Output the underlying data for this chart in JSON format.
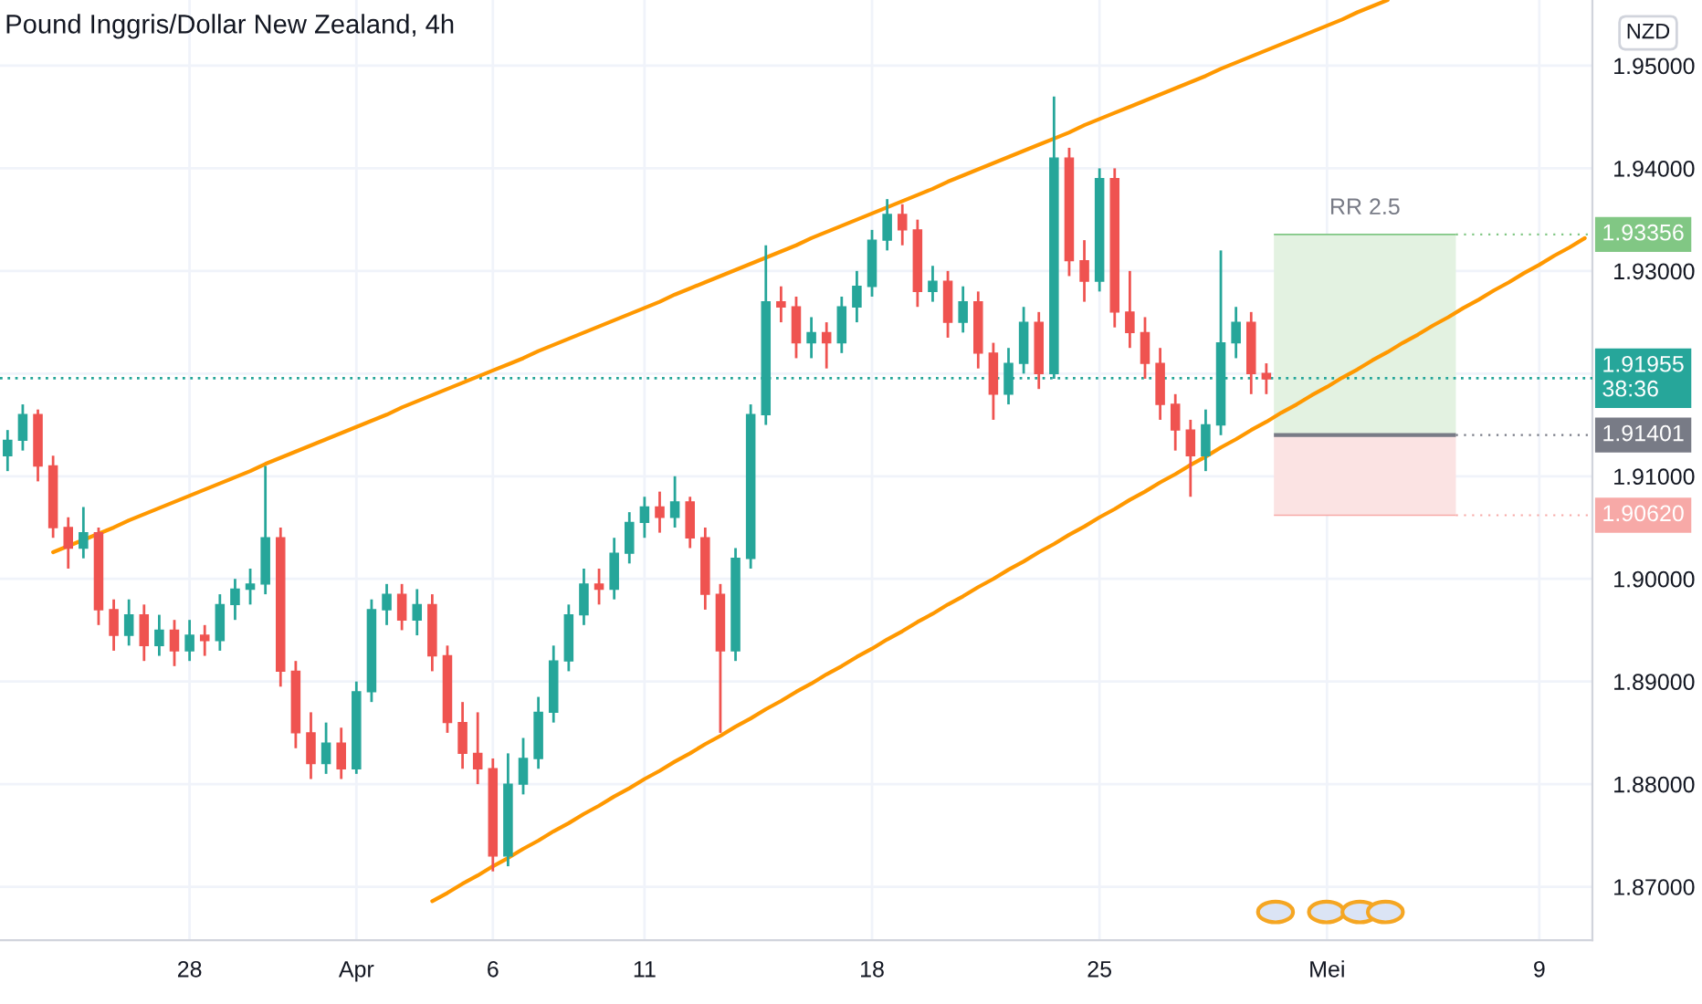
{
  "chart_data": {
    "type": "candlestick",
    "title": "Pound Inggris/Dollar New Zealand, 4h",
    "ylabel": "NZD",
    "categories": [
      null,
      null,
      null,
      null,
      null,
      null,
      null,
      null,
      null,
      null,
      null,
      null,
      "28",
      null,
      null,
      null,
      null,
      null,
      null,
      null,
      null,
      null,
      null,
      "Apr",
      null,
      null,
      null,
      null,
      null,
      null,
      null,
      null,
      "6",
      null,
      null,
      null,
      null,
      null,
      null,
      null,
      null,
      null,
      "11",
      null,
      null,
      null,
      null,
      null,
      null,
      null,
      null,
      null,
      null,
      null,
      null,
      null,
      null,
      "18",
      null,
      null,
      null,
      null,
      null,
      null,
      null,
      null,
      null,
      null,
      null,
      null,
      null,
      null,
      "25",
      null,
      null,
      null,
      null,
      null,
      null,
      null,
      null,
      null,
      null,
      null,
      null,
      null,
      null,
      "Mei",
      null,
      null,
      null,
      null,
      null,
      null,
      null,
      null,
      null,
      null,
      null,
      null,
      null,
      "9",
      null,
      null,
      null
    ],
    "ohlc": [
      [
        1.912,
        1.9145,
        1.9105,
        1.9135
      ],
      [
        1.9135,
        1.917,
        1.9125,
        1.916
      ],
      [
        1.916,
        1.9165,
        1.9095,
        1.911
      ],
      [
        1.911,
        1.912,
        1.904,
        1.905
      ],
      [
        1.905,
        1.906,
        1.901,
        1.903
      ],
      [
        1.903,
        1.907,
        1.902,
        1.9045
      ],
      [
        1.9045,
        1.905,
        1.8955,
        1.897
      ],
      [
        1.897,
        1.898,
        1.893,
        1.8945
      ],
      [
        1.8945,
        1.898,
        1.8935,
        1.8965
      ],
      [
        1.8965,
        1.8975,
        1.892,
        1.8935
      ],
      [
        1.8935,
        1.8965,
        1.8925,
        1.895
      ],
      [
        1.895,
        1.896,
        1.8915,
        1.893
      ],
      [
        1.893,
        1.896,
        1.892,
        1.8945
      ],
      [
        1.8945,
        1.8955,
        1.8925,
        1.894
      ],
      [
        1.894,
        1.8985,
        1.893,
        1.8975
      ],
      [
        1.8975,
        1.9,
        1.896,
        1.899
      ],
      [
        1.899,
        1.901,
        1.8975,
        1.8995
      ],
      [
        1.8995,
        1.911,
        1.8985,
        1.904
      ],
      [
        1.904,
        1.905,
        1.8895,
        1.891
      ],
      [
        1.891,
        1.892,
        1.8835,
        1.885
      ],
      [
        1.885,
        1.887,
        1.8805,
        1.882
      ],
      [
        1.882,
        1.886,
        1.881,
        1.884
      ],
      [
        1.884,
        1.8855,
        1.8805,
        1.8815
      ],
      [
        1.8815,
        1.89,
        1.881,
        1.889
      ],
      [
        1.889,
        1.898,
        1.888,
        1.897
      ],
      [
        1.897,
        1.8995,
        1.8955,
        1.8985
      ],
      [
        1.8985,
        1.8995,
        1.895,
        1.896
      ],
      [
        1.896,
        1.899,
        1.8945,
        1.8975
      ],
      [
        1.8975,
        1.8985,
        1.891,
        1.8925
      ],
      [
        1.8925,
        1.8935,
        1.885,
        1.886
      ],
      [
        1.886,
        1.888,
        1.8815,
        1.883
      ],
      [
        1.883,
        1.887,
        1.88,
        1.8815
      ],
      [
        1.8815,
        1.8825,
        1.8715,
        1.873
      ],
      [
        1.873,
        1.883,
        1.872,
        1.88
      ],
      [
        1.88,
        1.8845,
        1.879,
        1.8825
      ],
      [
        1.8825,
        1.8885,
        1.8815,
        1.887
      ],
      [
        1.887,
        1.8935,
        1.886,
        1.892
      ],
      [
        1.892,
        1.8975,
        1.891,
        1.8965
      ],
      [
        1.8965,
        1.901,
        1.8955,
        1.8995
      ],
      [
        1.8995,
        1.901,
        1.8975,
        1.899
      ],
      [
        1.899,
        1.904,
        1.898,
        1.9025
      ],
      [
        1.9025,
        1.9065,
        1.9015,
        1.9055
      ],
      [
        1.9055,
        1.908,
        1.904,
        1.907
      ],
      [
        1.907,
        1.9085,
        1.9045,
        1.906
      ],
      [
        1.906,
        1.91,
        1.905,
        1.9075
      ],
      [
        1.9075,
        1.908,
        1.903,
        1.904
      ],
      [
        1.904,
        1.905,
        1.897,
        1.8985
      ],
      [
        1.8985,
        1.8995,
        1.885,
        1.893
      ],
      [
        1.893,
        1.903,
        1.892,
        1.902
      ],
      [
        1.902,
        1.917,
        1.901,
        1.916
      ],
      [
        1.916,
        1.9325,
        1.915,
        1.927
      ],
      [
        1.927,
        1.9285,
        1.925,
        1.9265
      ],
      [
        1.9265,
        1.9275,
        1.9215,
        1.923
      ],
      [
        1.923,
        1.9255,
        1.9215,
        1.924
      ],
      [
        1.924,
        1.925,
        1.9205,
        1.923
      ],
      [
        1.923,
        1.9275,
        1.922,
        1.9265
      ],
      [
        1.9265,
        1.93,
        1.925,
        1.9285
      ],
      [
        1.9285,
        1.934,
        1.9275,
        1.933
      ],
      [
        1.933,
        1.937,
        1.932,
        1.9355
      ],
      [
        1.9355,
        1.9365,
        1.9325,
        1.934
      ],
      [
        1.934,
        1.935,
        1.9265,
        1.928
      ],
      [
        1.928,
        1.9305,
        1.927,
        1.929
      ],
      [
        1.929,
        1.93,
        1.9235,
        1.925
      ],
      [
        1.925,
        1.9285,
        1.924,
        1.927
      ],
      [
        1.927,
        1.928,
        1.9205,
        1.922
      ],
      [
        1.922,
        1.923,
        1.9155,
        1.918
      ],
      [
        1.918,
        1.9225,
        1.917,
        1.921
      ],
      [
        1.921,
        1.9265,
        1.92,
        1.925
      ],
      [
        1.925,
        1.926,
        1.9185,
        1.92
      ],
      [
        1.92,
        1.947,
        1.9195,
        1.941
      ],
      [
        1.941,
        1.942,
        1.9295,
        1.931
      ],
      [
        1.931,
        1.933,
        1.927,
        1.929
      ],
      [
        1.929,
        1.94,
        1.928,
        1.939
      ],
      [
        1.939,
        1.94,
        1.9245,
        1.926
      ],
      [
        1.926,
        1.93,
        1.9225,
        1.924
      ],
      [
        1.924,
        1.9255,
        1.9195,
        1.921
      ],
      [
        1.921,
        1.9225,
        1.9155,
        1.917
      ],
      [
        1.917,
        1.918,
        1.9125,
        1.9145
      ],
      [
        1.9145,
        1.9155,
        1.908,
        1.912
      ],
      [
        1.912,
        1.9165,
        1.9105,
        1.915
      ],
      [
        1.915,
        1.932,
        1.914,
        1.923
      ],
      [
        1.923,
        1.9265,
        1.9215,
        1.925
      ],
      [
        1.925,
        1.926,
        1.918,
        1.92
      ],
      [
        1.92,
        1.921,
        1.918,
        1.9195
      ],
      null,
      null,
      null,
      null,
      null,
      null,
      null,
      null,
      null,
      null,
      null,
      null,
      null,
      null,
      null,
      null,
      null,
      null,
      null,
      null,
      null
    ],
    "colors": [
      "#26a69a",
      "#26a69a",
      "#ef5350",
      "#ef5350",
      "#ef5350",
      "#26a69a",
      "#ef5350",
      "#ef5350",
      "#26a69a",
      "#ef5350",
      "#26a69a",
      "#ef5350",
      "#26a69a",
      "#ef5350",
      "#26a69a",
      "#26a69a",
      "#26a69a",
      "#26a69a",
      "#ef5350",
      "#ef5350",
      "#ef5350",
      "#26a69a",
      "#ef5350",
      "#26a69a",
      "#26a69a",
      "#26a69a",
      "#ef5350",
      "#26a69a",
      "#ef5350",
      "#ef5350",
      "#ef5350",
      "#ef5350",
      "#ef5350",
      "#26a69a",
      "#26a69a",
      "#26a69a",
      "#26a69a",
      "#26a69a",
      "#26a69a",
      "#ef5350",
      "#26a69a",
      "#26a69a",
      "#26a69a",
      "#ef5350",
      "#26a69a",
      "#ef5350",
      "#ef5350",
      "#ef5350",
      "#26a69a",
      "#26a69a",
      "#26a69a",
      "#ef5350",
      "#ef5350",
      "#26a69a",
      "#ef5350",
      "#26a69a",
      "#26a69a",
      "#26a69a",
      "#26a69a",
      "#ef5350",
      "#ef5350",
      "#26a69a",
      "#ef5350",
      "#26a69a",
      "#ef5350",
      "#ef5350",
      "#26a69a",
      "#26a69a",
      "#ef5350",
      "#26a69a",
      "#ef5350",
      "#ef5350",
      "#26a69a",
      "#ef5350",
      "#ef5350",
      "#ef5350",
      "#ef5350",
      "#ef5350",
      "#ef5350",
      "#26a69a",
      "#26a69a",
      "#26a69a",
      "#ef5350",
      "#ef5350",
      null,
      null,
      null,
      null,
      null,
      null,
      null,
      null,
      null,
      null,
      null,
      null,
      null,
      null,
      null,
      null,
      null,
      null,
      null,
      null,
      null
    ],
    "series": [
      {
        "type": "line",
        "color": "#ff9800",
        "values": [
          null,
          null,
          null,
          1.9026,
          1.9032,
          1.9038,
          1.9044,
          1.905,
          1.9057,
          1.9063,
          1.9069,
          1.9075,
          1.9081,
          1.9087,
          1.9093,
          1.9099,
          1.9105,
          1.9112,
          1.9118,
          1.9124,
          1.913,
          1.9136,
          1.9142,
          1.9148,
          1.9154,
          1.916,
          1.9167,
          1.9173,
          1.9179,
          1.9185,
          1.9191,
          1.9197,
          1.9203,
          1.9209,
          1.9215,
          1.9222,
          1.9228,
          1.9234,
          1.924,
          1.9246,
          1.9252,
          1.9258,
          1.9264,
          1.927,
          1.9277,
          1.9283,
          1.9289,
          1.9295,
          1.9301,
          1.9307,
          1.9313,
          1.9319,
          1.9325,
          1.9332,
          1.9338,
          1.9344,
          1.935,
          1.9356,
          1.9362,
          1.9368,
          1.9374,
          1.938,
          1.9387,
          1.9393,
          1.9399,
          1.9405,
          1.9411,
          1.9417,
          1.9423,
          1.9429,
          1.9435,
          1.9442,
          1.9448,
          1.9454,
          1.946,
          1.9466,
          1.9472,
          1.9478,
          1.9484,
          1.949,
          1.9497,
          1.9503,
          1.9509,
          1.9515,
          1.9521,
          1.9527,
          1.9533,
          1.9539,
          1.9545,
          1.9552,
          1.9558,
          1.9564,
          null,
          null,
          null,
          null,
          null,
          null,
          null,
          null,
          null,
          null,
          null,
          null,
          null
        ]
      },
      {
        "type": "line",
        "color": "#ff9800",
        "values": [
          null,
          null,
          null,
          null,
          null,
          null,
          null,
          null,
          null,
          null,
          null,
          null,
          null,
          null,
          null,
          null,
          null,
          null,
          null,
          null,
          null,
          null,
          null,
          null,
          null,
          null,
          null,
          null,
          1.8686,
          1.8694,
          1.8703,
          1.8711,
          1.872,
          1.8728,
          1.8737,
          1.8745,
          1.8754,
          1.8762,
          1.8771,
          1.8779,
          1.8788,
          1.8796,
          1.8805,
          1.8813,
          1.8822,
          1.883,
          1.8839,
          1.8847,
          1.8856,
          1.8864,
          1.8873,
          1.8881,
          1.889,
          1.8898,
          1.8907,
          1.8915,
          1.8924,
          1.8932,
          1.8941,
          1.8949,
          1.8958,
          1.8966,
          1.8975,
          1.8983,
          1.8992,
          1.9,
          1.9009,
          1.9017,
          1.9026,
          1.9034,
          1.9043,
          1.9051,
          1.906,
          1.9068,
          1.9077,
          1.9085,
          1.9094,
          1.9102,
          1.9111,
          1.9119,
          1.9128,
          1.9136,
          1.9145,
          1.9153,
          1.9162,
          1.917,
          1.9179,
          1.9187,
          1.9196,
          1.9204,
          1.9213,
          1.9221,
          1.923,
          1.9238,
          1.9247,
          1.9255,
          1.9264,
          1.9272,
          1.9281,
          1.9289,
          1.9298,
          1.9306,
          1.9315,
          1.9323,
          1.9332
        ]
      }
    ],
    "bands": [
      {
        "axis": "y",
        "from": 1.91401,
        "to": 1.93356,
        "label": "RR 2.5",
        "color": "#e3f2e1"
      },
      {
        "axis": "y",
        "from": 1.9062,
        "to": 1.91401,
        "color": "#fbe3e3"
      }
    ],
    "ref_lines": [
      {
        "axis": "y",
        "value": 1.93356,
        "label": "1.93356",
        "color": "#81c784"
      },
      {
        "axis": "y",
        "value": 1.91955,
        "label": "1.91955\n38:36",
        "color": "#26a69a",
        "line_style": "dotted"
      },
      {
        "axis": "y",
        "value": 1.91401,
        "label": "1.91401",
        "color": "#787b86",
        "line_style": "solid"
      },
      {
        "axis": "y",
        "value": 1.9062,
        "label": "1.90620",
        "color": "#f7a9a7"
      }
    ],
    "ylim": [
      1.8648,
      1.9564
    ],
    "yticks": [
      {
        "value": 1.87,
        "label": "1.87000"
      },
      {
        "value": 1.88,
        "label": "1.88000"
      },
      {
        "value": 1.89,
        "label": "1.89000"
      },
      {
        "value": 1.9,
        "label": "1.90000"
      },
      {
        "value": 1.91,
        "label": "1.91000"
      },
      {
        "value": 1.92,
        "label": null
      },
      {
        "value": 1.93,
        "label": "1.93000"
      },
      {
        "value": 1.94,
        "label": "1.94000"
      },
      {
        "value": 1.95,
        "label": "1.95000"
      }
    ],
    "grid": true
  }
}
